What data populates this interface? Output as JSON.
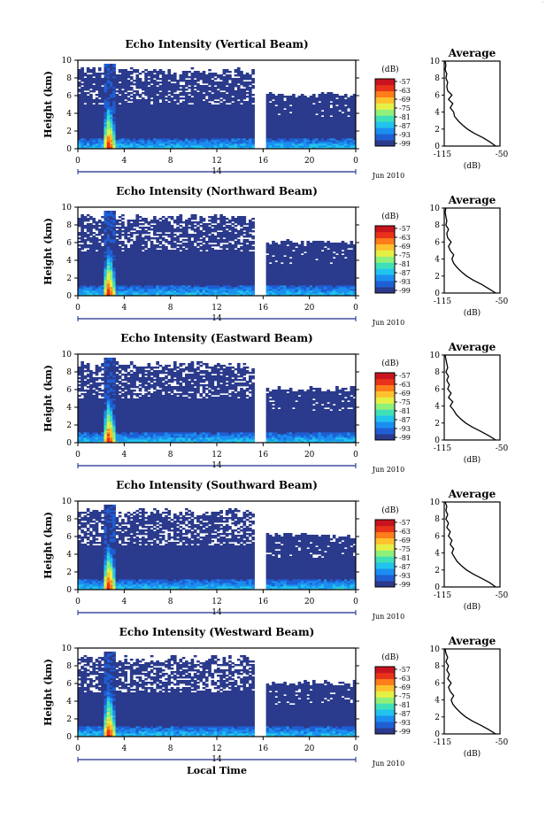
{
  "corner_mark": "‘",
  "colorbar": {
    "unit": "(dB)",
    "ticks": [
      "-57",
      "-63",
      "-69",
      "-75",
      "-81",
      "-87",
      "-93",
      "-99"
    ],
    "colors": [
      "#2b3a8c",
      "#1f5fd4",
      "#1b8ff0",
      "#22c3ee",
      "#3fe0b8",
      "#8ff07a",
      "#e5f046",
      "#ffc22e",
      "#ff7d1a",
      "#e8321a",
      "#c8141e"
    ]
  },
  "x_axis": {
    "tick_labels": [
      "0",
      "4",
      "8",
      "12",
      "16",
      "20",
      "0"
    ],
    "date_tick": "14",
    "date_label": "Jun 2010",
    "label": "Local Time"
  },
  "avg_axis": {
    "tick_labels": [
      "-115",
      "-50"
    ],
    "unit_label": "(dB)",
    "title": "Average"
  },
  "y_axis": {
    "label": "Height (km)",
    "tick_labels": [
      "0",
      "2",
      "4",
      "6",
      "8",
      "10"
    ]
  },
  "chart_data": [
    {
      "type": "heatmap",
      "title": "Echo Intensity (Vertical Beam)",
      "ylabel": "Height (km)",
      "xlabel": "Local Time",
      "xlim": [
        0,
        24
      ],
      "ylim": [
        0,
        10
      ],
      "zlim": [
        -99,
        -57
      ],
      "data_gap_hours": [
        15.2,
        16.2
      ],
      "average_profile": {
        "title": "Average",
        "xlim": [
          -115,
          -50
        ],
        "height_km": [
          0,
          0.5,
          1,
          1.5,
          2,
          2.5,
          3,
          3.5,
          4,
          4.5,
          5,
          5.5,
          6,
          6.5,
          7,
          7.5,
          8,
          8.5,
          9,
          9.5,
          10
        ],
        "db": [
          -55,
          -62,
          -70,
          -80,
          -88,
          -94,
          -99,
          -103,
          -104,
          -108,
          -105,
          -110,
          -106,
          -111,
          -112,
          -111,
          -113,
          -112,
          -114,
          -113,
          -114
        ]
      }
    },
    {
      "type": "heatmap",
      "title": "Echo Intensity (Northward Beam)",
      "ylabel": "Height (km)",
      "xlabel": "Local Time",
      "xlim": [
        0,
        24
      ],
      "ylim": [
        0,
        10
      ],
      "zlim": [
        -99,
        -57
      ],
      "data_gap_hours": [
        15.2,
        16.2
      ],
      "average_profile": {
        "title": "Average",
        "xlim": [
          -115,
          -50
        ],
        "height_km": [
          0,
          0.5,
          1,
          1.5,
          2,
          2.5,
          3,
          3.5,
          4,
          4.5,
          5,
          5.5,
          6,
          6.5,
          7,
          7.5,
          8,
          8.5,
          9,
          9.5,
          10
        ],
        "db": [
          -55,
          -63,
          -71,
          -81,
          -89,
          -95,
          -100,
          -104,
          -106,
          -104,
          -108,
          -110,
          -107,
          -111,
          -112,
          -110,
          -113,
          -112,
          -113,
          -114,
          -113
        ]
      }
    },
    {
      "type": "heatmap",
      "title": "Echo Intensity (Eastward Beam)",
      "ylabel": "Height (km)",
      "xlabel": "Local Time",
      "xlim": [
        0,
        24
      ],
      "ylim": [
        0,
        10
      ],
      "zlim": [
        -99,
        -57
      ],
      "data_gap_hours": [
        15.2,
        16.2
      ],
      "average_profile": {
        "title": "Average",
        "xlim": [
          -115,
          -50
        ],
        "height_km": [
          0,
          0.5,
          1,
          1.5,
          2,
          2.5,
          3,
          3.5,
          4,
          4.5,
          5,
          5.5,
          6,
          6.5,
          7,
          7.5,
          8,
          8.5,
          9,
          9.5,
          10
        ],
        "db": [
          -55,
          -63,
          -72,
          -82,
          -90,
          -96,
          -101,
          -104,
          -108,
          -105,
          -110,
          -107,
          -111,
          -109,
          -112,
          -110,
          -113,
          -111,
          -112,
          -113,
          -114
        ]
      }
    },
    {
      "type": "heatmap",
      "title": "Echo Intensity (Southward Beam)",
      "ylabel": "Height (km)",
      "xlabel": "Local Time",
      "xlim": [
        0,
        24
      ],
      "ylim": [
        0,
        10
      ],
      "zlim": [
        -99,
        -57
      ],
      "data_gap_hours": [
        15.2,
        16.2
      ],
      "average_profile": {
        "title": "Average",
        "xlim": [
          -115,
          -50
        ],
        "height_km": [
          0,
          0.5,
          1,
          1.5,
          2,
          2.5,
          3,
          3.5,
          4,
          4.5,
          5,
          5.5,
          6,
          6.5,
          7,
          7.5,
          8,
          8.5,
          9,
          9.5,
          10
        ],
        "db": [
          -55,
          -62,
          -71,
          -81,
          -89,
          -95,
          -100,
          -103,
          -106,
          -104,
          -108,
          -106,
          -110,
          -108,
          -112,
          -110,
          -113,
          -111,
          -113,
          -112,
          -114
        ]
      }
    },
    {
      "type": "heatmap",
      "title": "Echo Intensity (Westward Beam)",
      "ylabel": "Height (km)",
      "xlabel": "Local Time",
      "xlim": [
        0,
        24
      ],
      "ylim": [
        0,
        10
      ],
      "zlim": [
        -99,
        -57
      ],
      "data_gap_hours": [
        15.2,
        16.2
      ],
      "average_profile": {
        "title": "Average",
        "xlim": [
          -115,
          -50
        ],
        "height_km": [
          0,
          0.5,
          1,
          1.5,
          2,
          2.5,
          3,
          3.5,
          4,
          4.5,
          5,
          5.5,
          6,
          6.5,
          7,
          7.5,
          8,
          8.5,
          9,
          9.5,
          10
        ],
        "db": [
          -55,
          -63,
          -72,
          -82,
          -90,
          -96,
          -101,
          -105,
          -107,
          -104,
          -108,
          -110,
          -107,
          -111,
          -109,
          -112,
          -110,
          -113,
          -111,
          -113,
          -114
        ]
      }
    }
  ]
}
